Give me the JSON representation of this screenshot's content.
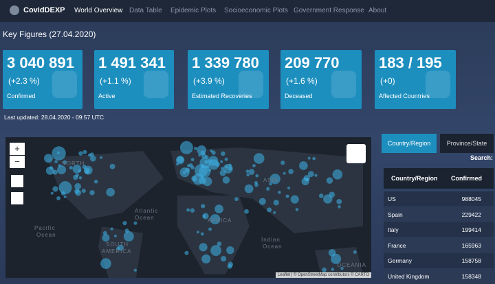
{
  "navbar": {
    "brand": "CovidDEXP",
    "items": [
      "World Overview",
      "Data Table",
      "Epidemic Plots",
      "Socioeconomic Plots",
      "Government Response",
      "About"
    ]
  },
  "key_figures": {
    "title": "Key Figures (27.04.2020)",
    "cards": [
      {
        "value": "3 040 891",
        "change": "(+2.3 %)",
        "label": "Confirmed"
      },
      {
        "value": "1 491 341",
        "change": "(+1.1 %)",
        "label": "Active"
      },
      {
        "value": "1 339 780",
        "change": "(+3.9 %)",
        "label": "Estimated Recoveries"
      },
      {
        "value": "209 770",
        "change": "(+1.6 %)",
        "label": "Deceased"
      },
      {
        "value": "183 / 195",
        "change": "(+0)",
        "label": "Affected Countries"
      }
    ],
    "updated": "Last updated: 28.04.2020 - 09:57 UTC"
  },
  "map": {
    "zoom_in": "+",
    "zoom_out": "−",
    "labels": [
      "NORTH",
      "Atlantic",
      "Ocean",
      "Pacific",
      "Ocean",
      "AFRICA",
      "ASIA",
      "SOUTH",
      "AMERICA",
      "Indian",
      "Ocean",
      "OCEANIA"
    ],
    "attribution": "Leaflet | © OpenStreetMap contributors © CARTO"
  },
  "table": {
    "tabs": [
      "Country/Region",
      "Province/State"
    ],
    "search": "Search:",
    "columns": [
      "Country/Region",
      "Confirmed"
    ],
    "rows": [
      [
        "US",
        "988045"
      ],
      [
        "Spain",
        "229422"
      ],
      [
        "Italy",
        "199414"
      ],
      [
        "France",
        "165963"
      ],
      [
        "Germany",
        "158758"
      ],
      [
        "United Kingdom",
        "158348"
      ]
    ]
  }
}
